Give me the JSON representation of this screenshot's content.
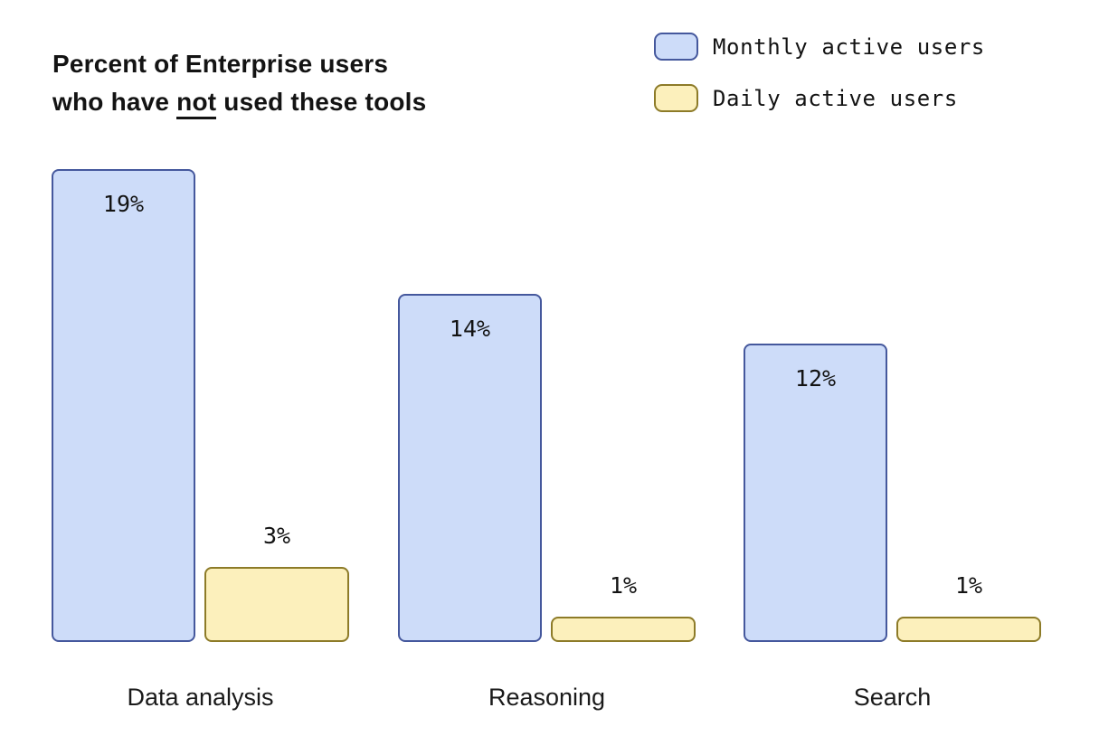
{
  "title": {
    "line1": "Percent of Enterprise users",
    "line2_pre": "who have ",
    "line2_underlined": "not",
    "line2_post": " used these tools"
  },
  "legend": [
    {
      "label": "Monthly active users",
      "series": "monthly",
      "fill": "#cddcf9",
      "border": "#45589d"
    },
    {
      "label": "Daily active users",
      "series": "daily",
      "fill": "#fcf0bc",
      "border": "#8d7b28"
    }
  ],
  "colors": {
    "monthly_fill": "#cddcf9",
    "monthly_border": "#45589d",
    "daily_fill": "#fcf0bc",
    "daily_border": "#8d7b28",
    "text": "#131313",
    "background": "#ffffff"
  },
  "chart_data": {
    "type": "bar",
    "title": "Percent of Enterprise users who have not used these tools",
    "categories": [
      "Data analysis",
      "Reasoning",
      "Search"
    ],
    "series": [
      {
        "name": "Monthly active users",
        "values": [
          19,
          14,
          12
        ],
        "labels": [
          "19%",
          "14%",
          "12%"
        ]
      },
      {
        "name": "Daily active users",
        "values": [
          3,
          1,
          1
        ],
        "labels": [
          "3%",
          "1%",
          "1%"
        ]
      }
    ],
    "value_unit": "%",
    "ylim": [
      0,
      19
    ],
    "grid": false,
    "axes_visible": false,
    "legend_position": "top-right",
    "value_label_placement": {
      "monthly": "inside-top",
      "daily": "above-bar"
    }
  }
}
